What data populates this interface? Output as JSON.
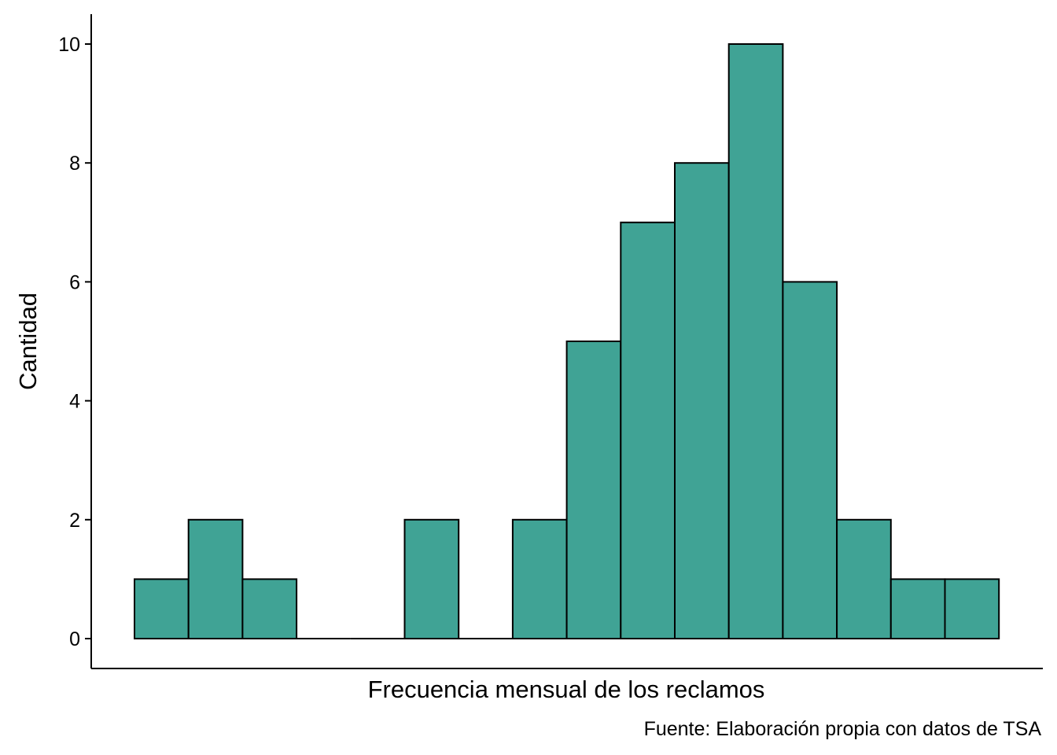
{
  "chart_data": {
    "type": "bar",
    "title": "",
    "xlabel": "Frecuencia mensual de los reclamos",
    "ylabel": "Cantidad",
    "caption": "Fuente: Elaboración propia con datos de TSA",
    "values": [
      1,
      2,
      1,
      0,
      0,
      2,
      0,
      2,
      5,
      7,
      8,
      10,
      6,
      2,
      1,
      1
    ],
    "ylim": [
      0,
      10
    ],
    "yticks": [
      0,
      2,
      4,
      6,
      8,
      10
    ],
    "grid": false,
    "legend": "none",
    "colors": {
      "bar_fill": "#40a395",
      "bar_stroke": "#000000",
      "axis": "#000000"
    }
  }
}
